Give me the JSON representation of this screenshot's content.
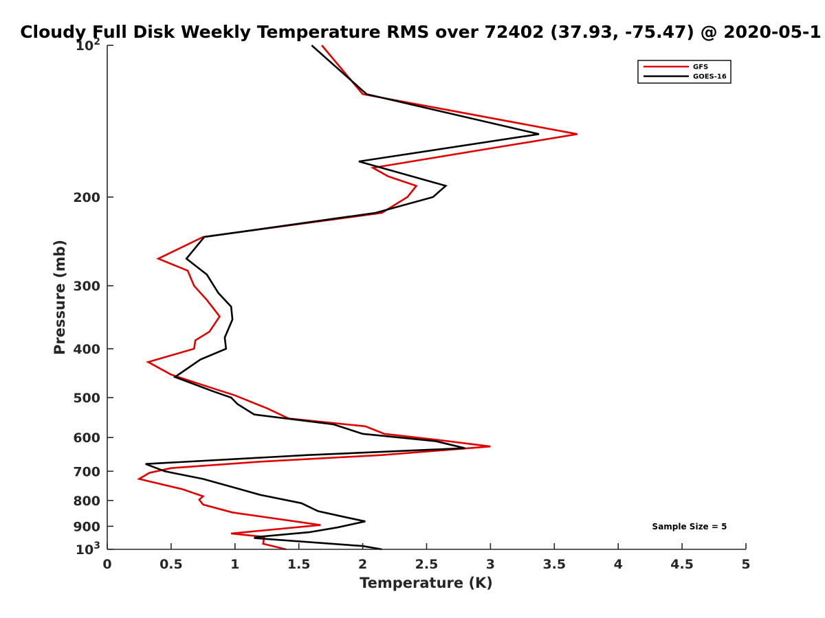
{
  "chart_data": {
    "type": "line",
    "title": "Cloudy Full Disk Weekly Temperature RMS over 72402 (37.93, -75.47) @ 2020-05-1",
    "xlabel": "Temperature (K)",
    "ylabel": "Pressure (mb)",
    "xlim": [
      0,
      5
    ],
    "ylim": [
      1000,
      100
    ],
    "yscale": "log",
    "x_ticks": [
      "0",
      "0.5",
      "1",
      "1.5",
      "2",
      "2.5",
      "3",
      "3.5",
      "4",
      "4.5",
      "5"
    ],
    "y_ticks": [
      {
        "value": 100,
        "base": "10",
        "exp": "2"
      },
      {
        "value": 200,
        "label": "200"
      },
      {
        "value": 300,
        "label": "300"
      },
      {
        "value": 400,
        "label": "400"
      },
      {
        "value": 500,
        "label": "500"
      },
      {
        "value": 600,
        "label": "600"
      },
      {
        "value": 700,
        "label": "700"
      },
      {
        "value": 800,
        "label": "800"
      },
      {
        "value": 900,
        "label": "900"
      },
      {
        "value": 1000,
        "base": "10",
        "exp": "3"
      }
    ],
    "legend_position": "top-right",
    "annotation": "Sample Size = 5",
    "series": [
      {
        "name": "GFS",
        "color": "#e00000",
        "points": [
          [
            1.68,
            100
          ],
          [
            2.0,
            125
          ],
          [
            3.68,
            150
          ],
          [
            2.08,
            175
          ],
          [
            2.2,
            182
          ],
          [
            2.42,
            190
          ],
          [
            2.35,
            200
          ],
          [
            2.15,
            215
          ],
          [
            0.75,
            240
          ],
          [
            0.4,
            265
          ],
          [
            0.63,
            280
          ],
          [
            0.68,
            300
          ],
          [
            0.78,
            320
          ],
          [
            0.88,
            345
          ],
          [
            0.8,
            370
          ],
          [
            0.69,
            385
          ],
          [
            0.68,
            400
          ],
          [
            0.32,
            425
          ],
          [
            0.5,
            450
          ],
          [
            0.78,
            475
          ],
          [
            1.0,
            495
          ],
          [
            1.25,
            525
          ],
          [
            1.42,
            550
          ],
          [
            2.02,
            570
          ],
          [
            2.17,
            590
          ],
          [
            2.6,
            607
          ],
          [
            3.0,
            625
          ],
          [
            2.15,
            650
          ],
          [
            1.2,
            670
          ],
          [
            0.5,
            690
          ],
          [
            0.33,
            705
          ],
          [
            0.25,
            725
          ],
          [
            0.59,
            760
          ],
          [
            0.75,
            785
          ],
          [
            0.72,
            797
          ],
          [
            0.75,
            815
          ],
          [
            0.98,
            845
          ],
          [
            1.67,
            895
          ],
          [
            0.97,
            930
          ],
          [
            1.23,
            945
          ],
          [
            1.22,
            975
          ],
          [
            1.4,
            1000
          ]
        ]
      },
      {
        "name": "GOES-16",
        "color": "#000000",
        "points": [
          [
            1.6,
            100
          ],
          [
            2.03,
            125
          ],
          [
            3.38,
            150
          ],
          [
            1.97,
            170
          ],
          [
            2.65,
            190
          ],
          [
            2.55,
            200
          ],
          [
            2.1,
            215
          ],
          [
            0.76,
            240
          ],
          [
            0.62,
            265
          ],
          [
            0.78,
            285
          ],
          [
            0.87,
            310
          ],
          [
            0.97,
            330
          ],
          [
            0.98,
            350
          ],
          [
            0.92,
            380
          ],
          [
            0.93,
            400
          ],
          [
            0.73,
            420
          ],
          [
            0.53,
            455
          ],
          [
            0.82,
            485
          ],
          [
            0.97,
            500
          ],
          [
            1.02,
            515
          ],
          [
            1.15,
            540
          ],
          [
            1.77,
            565
          ],
          [
            2.0,
            590
          ],
          [
            2.57,
            610
          ],
          [
            2.8,
            630
          ],
          [
            1.57,
            650
          ],
          [
            0.3,
            677
          ],
          [
            0.45,
            700
          ],
          [
            0.75,
            725
          ],
          [
            1.0,
            755
          ],
          [
            1.2,
            780
          ],
          [
            1.52,
            810
          ],
          [
            1.65,
            840
          ],
          [
            1.88,
            865
          ],
          [
            2.02,
            880
          ],
          [
            1.8,
            905
          ],
          [
            1.58,
            925
          ],
          [
            1.17,
            945
          ],
          [
            1.15,
            950
          ],
          [
            2.0,
            985
          ],
          [
            2.15,
            1000
          ]
        ]
      }
    ]
  }
}
